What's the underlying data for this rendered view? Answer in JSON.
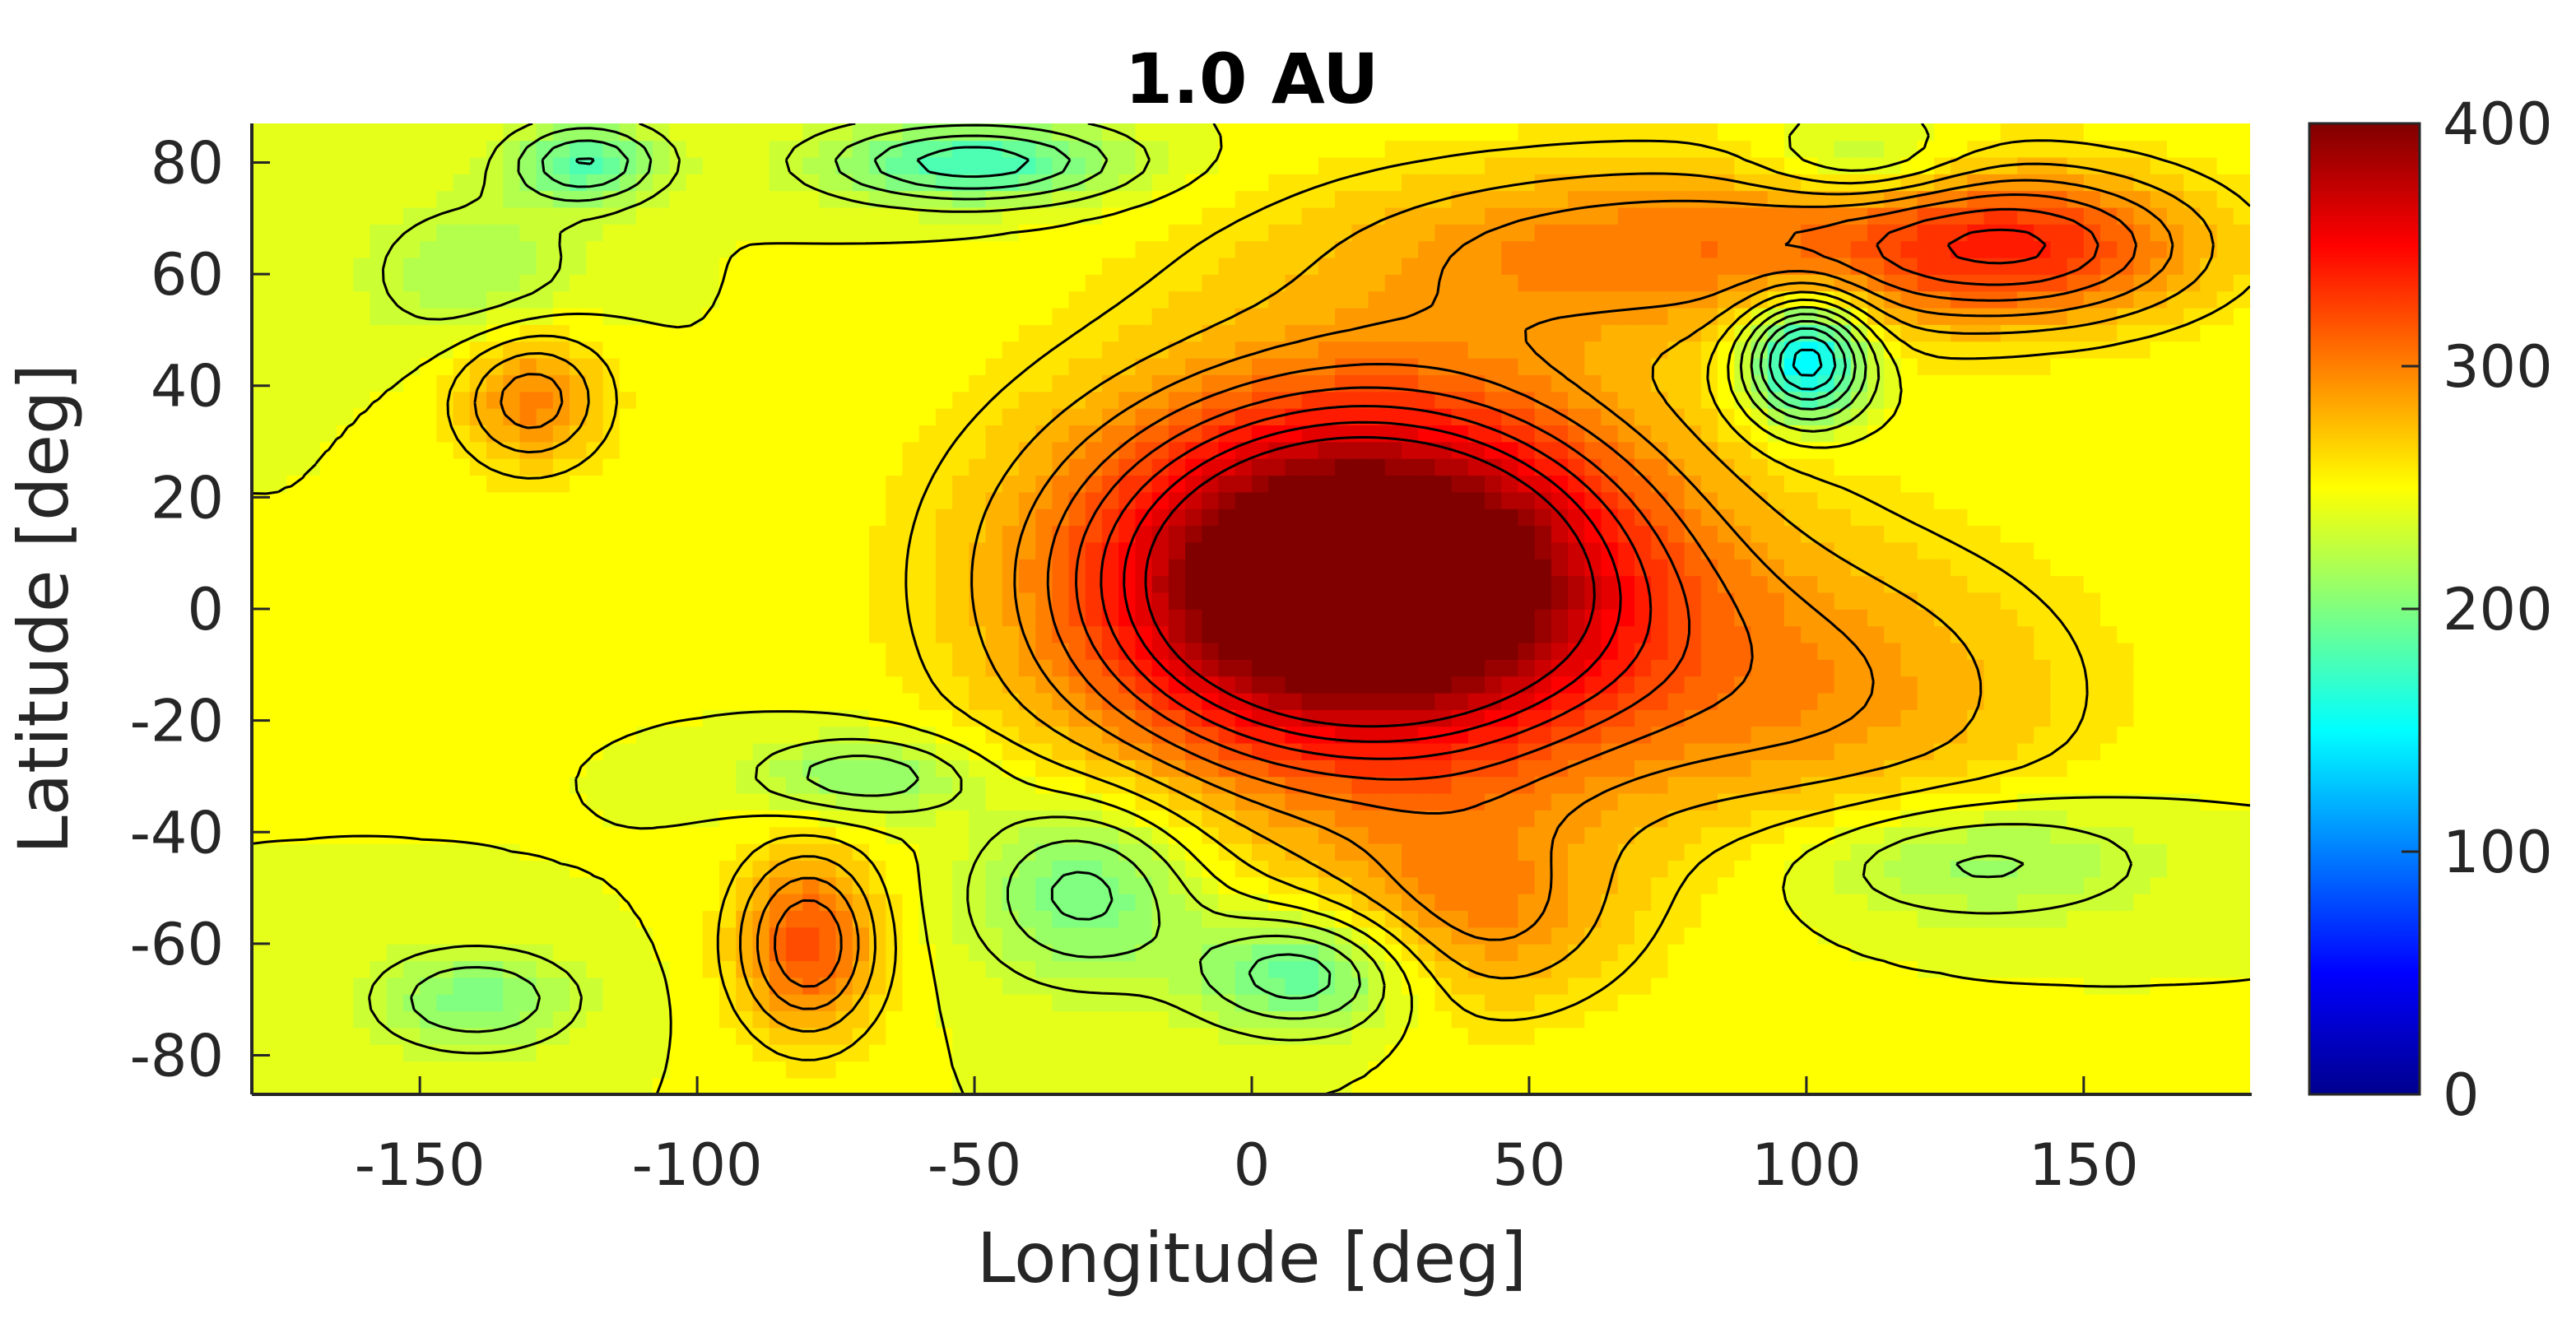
{
  "chart_data": {
    "type": "heatmap",
    "subtype": "filled-contour",
    "title": "1.0 AU",
    "xlabel": "Longitude [deg]",
    "ylabel": "Latitude [deg]",
    "xlim": [
      -180,
      180
    ],
    "ylim": [
      -87,
      87
    ],
    "xticks": [
      -150,
      -100,
      -50,
      0,
      50,
      100,
      150
    ],
    "xtick_labels": [
      "-150",
      "-100",
      "-50",
      "0",
      "50",
      "100",
      "150"
    ],
    "yticks": [
      80,
      60,
      40,
      20,
      0,
      -20,
      -40,
      -60,
      -80
    ],
    "ytick_labels": [
      "80",
      "60",
      "40",
      "20",
      "0",
      "-20",
      "-40",
      "-60",
      "-80"
    ],
    "colorbar": {
      "colormap": "jet",
      "range": [
        0,
        400
      ],
      "ticks": [
        0,
        100,
        200,
        300,
        400
      ],
      "tick_labels": [
        "0",
        "100",
        "200",
        "300",
        "400"
      ]
    },
    "background_level": 245,
    "features": [
      {
        "lon": 20,
        "lat": 5,
        "rx": 60,
        "ry": 42,
        "value": 355
      },
      {
        "lon": 20,
        "lat": 5,
        "rx": 48,
        "ry": 30,
        "value": 365
      },
      {
        "lon": 80,
        "lat": 65,
        "rx": 70,
        "ry": 18,
        "value": 300
      },
      {
        "lon": 140,
        "lat": 65,
        "rx": 35,
        "ry": 15,
        "value": 315
      },
      {
        "lon": 105,
        "lat": -15,
        "rx": 50,
        "ry": 30,
        "value": 285
      },
      {
        "lon": -130,
        "lat": 38,
        "rx": 15,
        "ry": 14,
        "value": 300
      },
      {
        "lon": -80,
        "lat": -60,
        "rx": 14,
        "ry": 18,
        "value": 320
      },
      {
        "lon": 40,
        "lat": -55,
        "rx": 30,
        "ry": 20,
        "value": 290
      },
      {
        "lon": 100,
        "lat": 45,
        "rx": 12,
        "ry": 12,
        "value": 130
      },
      {
        "lon": -50,
        "lat": 80,
        "rx": 30,
        "ry": 8,
        "value": 175
      },
      {
        "lon": -120,
        "lat": 80,
        "rx": 15,
        "ry": 8,
        "value": 185
      },
      {
        "lon": -30,
        "lat": -50,
        "rx": 22,
        "ry": 18,
        "value": 190
      },
      {
        "lon": 10,
        "lat": -65,
        "rx": 22,
        "ry": 12,
        "value": 180
      },
      {
        "lon": 130,
        "lat": -45,
        "rx": 35,
        "ry": 12,
        "value": 205
      },
      {
        "lon": -70,
        "lat": -30,
        "rx": 22,
        "ry": 8,
        "value": 200
      },
      {
        "lon": -140,
        "lat": 60,
        "rx": 22,
        "ry": 15,
        "value": 215
      },
      {
        "lon": -140,
        "lat": -70,
        "rx": 20,
        "ry": 10,
        "value": 200
      },
      {
        "lon": 110,
        "lat": 80,
        "rx": 20,
        "ry": 8,
        "value": 210
      }
    ]
  }
}
